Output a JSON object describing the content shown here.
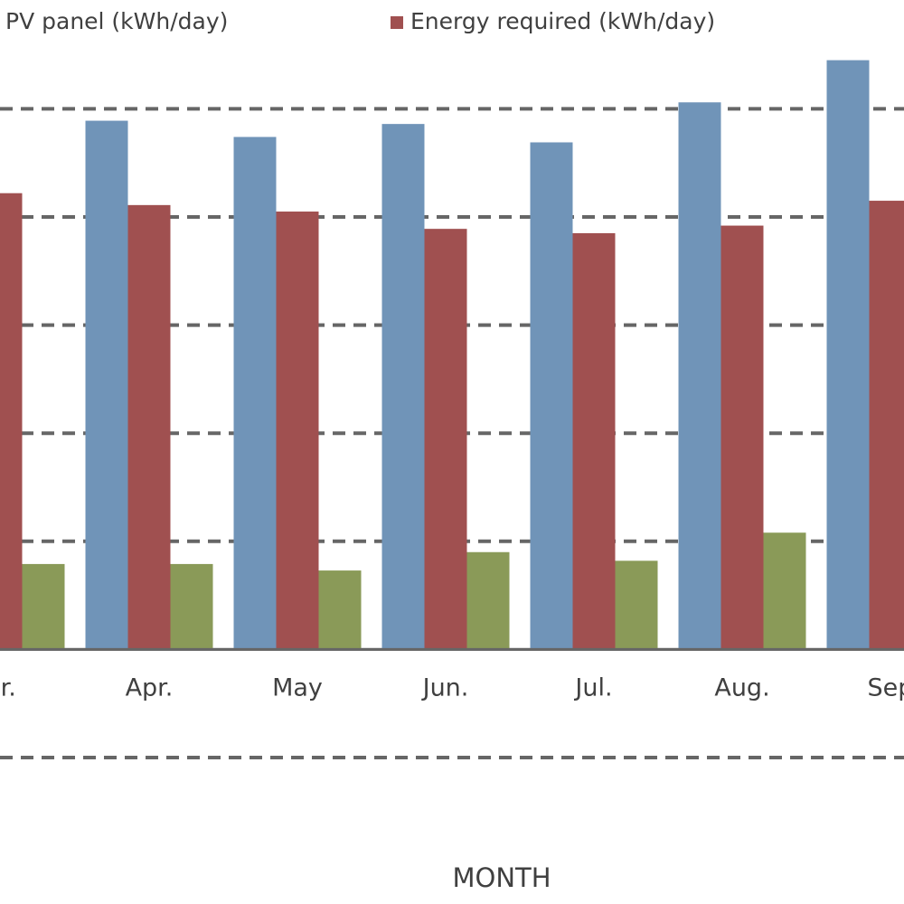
{
  "chart_data": {
    "type": "bar",
    "x_label": "MONTH",
    "categories": [
      "ar.",
      "Apr.",
      "May",
      "Jun.",
      "Jul.",
      "Aug.",
      "Sep"
    ],
    "series": [
      {
        "name": "PV panel (kWh/day)",
        "color": "#7094b8",
        "values": [
          null,
          4.89,
          4.74,
          4.86,
          4.69,
          5.06,
          5.45
        ]
      },
      {
        "name": "Energy required (kWh/day)",
        "color": "#a05050",
        "values": [
          4.22,
          4.11,
          4.05,
          3.89,
          3.85,
          3.92,
          4.15
        ]
      },
      {
        "color": "#8a9a58",
        "values": [
          0.79,
          0.79,
          0.73,
          0.9,
          0.82,
          1.08,
          null
        ]
      }
    ],
    "ylim": [
      -1,
      5.5
    ],
    "yticks": [
      -1,
      0,
      1,
      2,
      3,
      4,
      5
    ],
    "grid": true
  }
}
